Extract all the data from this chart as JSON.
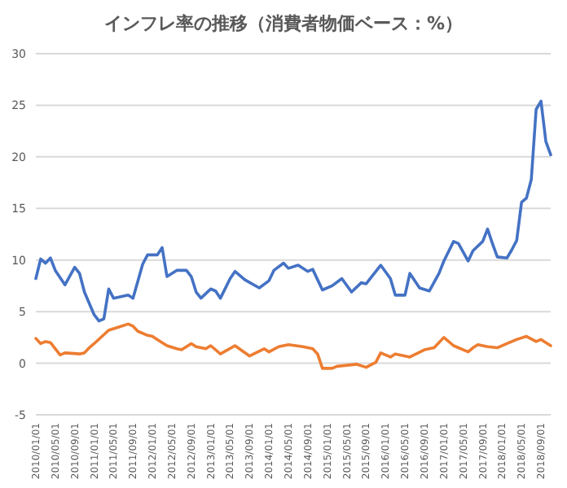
{
  "chart_data": {
    "type": "line",
    "title": "インフレ率の推移（消費者物価ベース：%）",
    "xlim": [
      "2010-01",
      "2018-11"
    ],
    "xticks": [
      {
        "value": "2010-01",
        "label": "2010/01/01"
      },
      {
        "value": "2010-05",
        "label": "2010/05/01"
      },
      {
        "value": "2010-09",
        "label": "2010/09/01"
      },
      {
        "value": "2011-01",
        "label": "2011/01/01"
      },
      {
        "value": "2011-05",
        "label": "2011/05/01"
      },
      {
        "value": "2011-09",
        "label": "2011/09/01"
      },
      {
        "value": "2012-01",
        "label": "2012/01/01"
      },
      {
        "value": "2012-05",
        "label": "2012/05/01"
      },
      {
        "value": "2012-09",
        "label": "2012/09/01"
      },
      {
        "value": "2013-01",
        "label": "2013/01/01"
      },
      {
        "value": "2013-05",
        "label": "2013/05/01"
      },
      {
        "value": "2013-09",
        "label": "2013/09/01"
      },
      {
        "value": "2014-01",
        "label": "2014/01/01"
      },
      {
        "value": "2014-05",
        "label": "2014/05/01"
      },
      {
        "value": "2014-09",
        "label": "2014/09/01"
      },
      {
        "value": "2015-01",
        "label": "2015/01/01"
      },
      {
        "value": "2015-05",
        "label": "2015/05/01"
      },
      {
        "value": "2015-09",
        "label": "2015/09/01"
      },
      {
        "value": "2016-01",
        "label": "2016/01/01"
      },
      {
        "value": "2016-05",
        "label": "2016/05/01"
      },
      {
        "value": "2016-09",
        "label": "2016/09/01"
      },
      {
        "value": "2017-01",
        "label": "2017/01/01"
      },
      {
        "value": "2017-05",
        "label": "2017/05/01"
      },
      {
        "value": "2017-09",
        "label": "2017/09/01"
      },
      {
        "value": "2018-01",
        "label": "2018/01/01"
      },
      {
        "value": "2018-05",
        "label": "2018/05/01"
      },
      {
        "value": "2018-09",
        "label": "2018/09/01"
      }
    ],
    "ylim": [
      -5,
      30
    ],
    "yticks": [
      -5,
      0,
      5,
      10,
      15,
      20,
      25,
      30
    ],
    "grid": "y",
    "marker": "none",
    "line_style": "solid",
    "series": [
      {
        "color": "#4472c4",
        "x": [
          "2010-01",
          "2010-02",
          "2010-03",
          "2010-04",
          "2010-05",
          "2010-07",
          "2010-09",
          "2010-10",
          "2010-11",
          "2011-01",
          "2011-02",
          "2011-03",
          "2011-04",
          "2011-05",
          "2011-08",
          "2011-09",
          "2011-11",
          "2011-12",
          "2012-02",
          "2012-03",
          "2012-04",
          "2012-06",
          "2012-08",
          "2012-09",
          "2012-10",
          "2012-11",
          "2013-01",
          "2013-02",
          "2013-03",
          "2013-05",
          "2013-06",
          "2013-08",
          "2013-11",
          "2014-01",
          "2014-02",
          "2014-04",
          "2014-05",
          "2014-07",
          "2014-09",
          "2014-10",
          "2014-12",
          "2015-02",
          "2015-04",
          "2015-06",
          "2015-08",
          "2015-09",
          "2015-12",
          "2016-02",
          "2016-03",
          "2016-05",
          "2016-06",
          "2016-08",
          "2016-10",
          "2016-12",
          "2017-01",
          "2017-03",
          "2017-04",
          "2017-06",
          "2017-07",
          "2017-09",
          "2017-10",
          "2017-11",
          "2017-12",
          "2018-02",
          "2018-03",
          "2018-04",
          "2018-05",
          "2018-06",
          "2018-07",
          "2018-08",
          "2018-09",
          "2018-10",
          "2018-11"
        ],
        "values": [
          8.2,
          10.1,
          9.7,
          10.2,
          9.0,
          7.6,
          9.3,
          8.7,
          6.9,
          4.7,
          4.1,
          4.3,
          7.2,
          6.3,
          6.6,
          6.3,
          9.6,
          10.5,
          10.5,
          11.2,
          8.4,
          9.0,
          9.0,
          8.4,
          6.9,
          6.3,
          7.2,
          7.0,
          6.3,
          8.2,
          8.9,
          8.1,
          7.3,
          8.0,
          9.0,
          9.7,
          9.2,
          9.5,
          8.9,
          9.1,
          7.1,
          7.5,
          8.2,
          6.9,
          7.8,
          7.7,
          9.5,
          8.2,
          6.6,
          6.6,
          8.7,
          7.3,
          7.0,
          8.7,
          9.9,
          11.8,
          11.6,
          9.9,
          10.9,
          11.8,
          13.0,
          11.6,
          10.3,
          10.2,
          11.0,
          11.9,
          15.6,
          16.0,
          17.8,
          24.6,
          25.4,
          21.5,
          20.2
        ]
      },
      {
        "color": "#ed7d31",
        "x": [
          "2010-01",
          "2010-02",
          "2010-03",
          "2010-04",
          "2010-06",
          "2010-07",
          "2010-10",
          "2010-11",
          "2010-12",
          "2011-01",
          "2011-04",
          "2011-06",
          "2011-08",
          "2011-09",
          "2011-10",
          "2011-12",
          "2012-01",
          "2012-02",
          "2012-04",
          "2012-06",
          "2012-07",
          "2012-09",
          "2012-10",
          "2012-12",
          "2013-01",
          "2013-03",
          "2013-06",
          "2013-09",
          "2013-12",
          "2014-01",
          "2014-03",
          "2014-05",
          "2014-08",
          "2014-10",
          "2014-11",
          "2014-12",
          "2015-02",
          "2015-03",
          "2015-05",
          "2015-07",
          "2015-09",
          "2015-11",
          "2015-12",
          "2016-02",
          "2016-03",
          "2016-05",
          "2016-06",
          "2016-09",
          "2016-11",
          "2017-01",
          "2017-03",
          "2017-06",
          "2017-07",
          "2017-08",
          "2017-10",
          "2017-12",
          "2018-02",
          "2018-04",
          "2018-06",
          "2018-08",
          "2018-09",
          "2018-11"
        ],
        "values": [
          2.4,
          1.9,
          2.1,
          2.0,
          0.8,
          1.0,
          0.9,
          1.0,
          1.5,
          1.9,
          3.2,
          3.5,
          3.8,
          3.6,
          3.1,
          2.7,
          2.6,
          2.3,
          1.7,
          1.4,
          1.3,
          1.9,
          1.6,
          1.4,
          1.7,
          0.9,
          1.7,
          0.7,
          1.4,
          1.1,
          1.6,
          1.8,
          1.6,
          1.4,
          0.9,
          -0.5,
          -0.5,
          -0.3,
          -0.2,
          -0.1,
          -0.4,
          0.1,
          1.0,
          0.6,
          0.9,
          0.7,
          0.6,
          1.3,
          1.5,
          2.5,
          1.7,
          1.1,
          1.5,
          1.8,
          1.6,
          1.5,
          1.9,
          2.3,
          2.6,
          2.1,
          2.3,
          1.7
        ]
      }
    ]
  }
}
